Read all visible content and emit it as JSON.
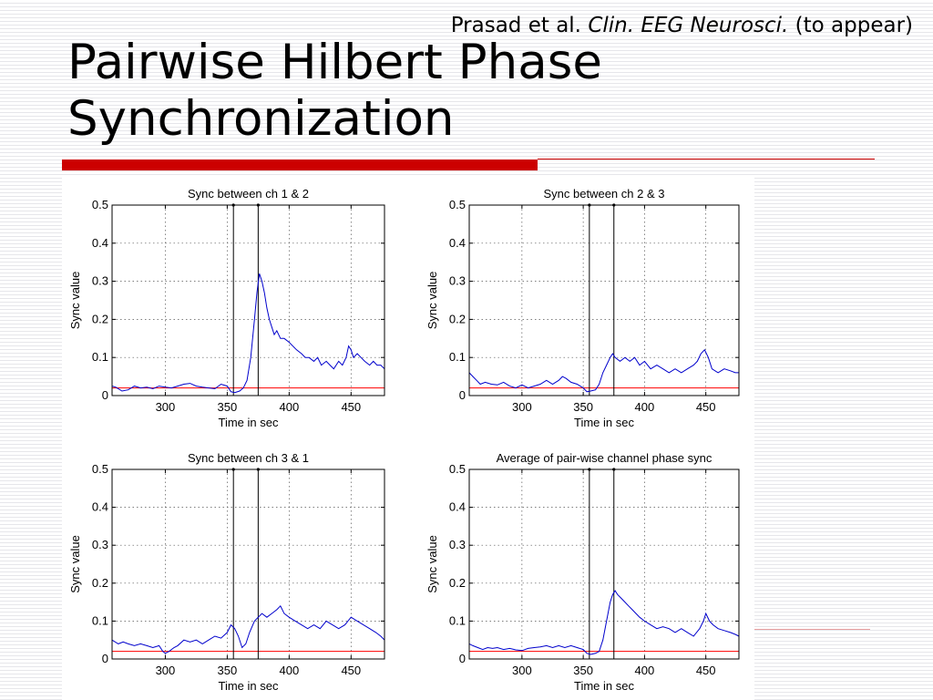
{
  "header": {
    "citation_authors": "Prasad et al.",
    "citation_journal": "Clin. EEG Neurosci.",
    "citation_note": "(to appear)",
    "title": "Pairwise Hilbert Phase Synchronization"
  },
  "colors": {
    "accent_bar": "#cc0000",
    "series_line": "#0000cc",
    "baseline": "#ff0000"
  },
  "chart_data": [
    {
      "type": "line",
      "title": "Sync between ch 1 & 2",
      "xlabel": "Time in sec",
      "ylabel": "Sync value",
      "xlim": [
        257,
        477
      ],
      "ylim": [
        0,
        0.5
      ],
      "xticks": [
        300,
        350,
        400,
        450
      ],
      "yticks": [
        0,
        0.1,
        0.2,
        0.3,
        0.4,
        0.5
      ],
      "grid": true,
      "vlines": [
        355,
        375
      ],
      "baseline": 0.02,
      "series": [
        {
          "x": [
            257,
            260,
            265,
            270,
            275,
            280,
            285,
            290,
            295,
            300,
            305,
            310,
            315,
            320,
            325,
            330,
            335,
            340,
            345,
            350,
            353,
            356,
            360,
            363,
            366,
            369,
            372,
            374,
            376,
            378,
            380,
            382,
            384,
            386,
            388,
            390,
            393,
            396,
            400,
            403,
            406,
            410,
            413,
            416,
            420,
            423,
            426,
            430,
            433,
            436,
            440,
            443,
            446,
            448,
            450,
            452,
            455,
            458,
            461,
            465,
            468,
            471,
            474,
            477
          ],
          "y": [
            0.025,
            0.022,
            0.012,
            0.015,
            0.025,
            0.02,
            0.022,
            0.018,
            0.025,
            0.022,
            0.02,
            0.025,
            0.03,
            0.032,
            0.025,
            0.022,
            0.02,
            0.018,
            0.03,
            0.025,
            0.01,
            0.008,
            0.012,
            0.02,
            0.04,
            0.1,
            0.2,
            0.27,
            0.32,
            0.3,
            0.27,
            0.23,
            0.2,
            0.18,
            0.16,
            0.17,
            0.15,
            0.15,
            0.14,
            0.13,
            0.12,
            0.11,
            0.1,
            0.1,
            0.09,
            0.1,
            0.08,
            0.09,
            0.08,
            0.07,
            0.09,
            0.08,
            0.1,
            0.13,
            0.12,
            0.1,
            0.11,
            0.1,
            0.09,
            0.08,
            0.09,
            0.08,
            0.08,
            0.07
          ]
        }
      ]
    },
    {
      "type": "line",
      "title": "Sync between ch 2 & 3",
      "xlabel": "Time in sec",
      "ylabel": "Sync value",
      "xlim": [
        257,
        477
      ],
      "ylim": [
        0,
        0.5
      ],
      "xticks": [
        300,
        350,
        400,
        450
      ],
      "yticks": [
        0,
        0.1,
        0.2,
        0.3,
        0.4,
        0.5
      ],
      "grid": true,
      "vlines": [
        355,
        375
      ],
      "baseline": 0.02,
      "series": [
        {
          "x": [
            257,
            260,
            263,
            266,
            270,
            275,
            280,
            285,
            290,
            295,
            300,
            305,
            310,
            315,
            320,
            325,
            330,
            333,
            336,
            340,
            345,
            350,
            353,
            356,
            360,
            363,
            366,
            369,
            372,
            374,
            376,
            380,
            384,
            388,
            392,
            396,
            400,
            405,
            410,
            415,
            420,
            425,
            430,
            435,
            440,
            443,
            446,
            449,
            452,
            455,
            460,
            465,
            470,
            474,
            477
          ],
          "y": [
            0.06,
            0.05,
            0.04,
            0.03,
            0.035,
            0.03,
            0.028,
            0.035,
            0.025,
            0.02,
            0.028,
            0.02,
            0.025,
            0.03,
            0.04,
            0.03,
            0.04,
            0.05,
            0.045,
            0.035,
            0.03,
            0.02,
            0.01,
            0.012,
            0.015,
            0.03,
            0.06,
            0.08,
            0.1,
            0.11,
            0.1,
            0.09,
            0.1,
            0.09,
            0.1,
            0.08,
            0.09,
            0.07,
            0.08,
            0.07,
            0.06,
            0.07,
            0.06,
            0.07,
            0.08,
            0.09,
            0.11,
            0.12,
            0.1,
            0.07,
            0.06,
            0.07,
            0.065,
            0.06,
            0.06
          ]
        }
      ]
    },
    {
      "type": "line",
      "title": "Sync between ch 3 & 1",
      "xlabel": "Time in sec",
      "ylabel": "Sync value",
      "xlim": [
        257,
        477
      ],
      "ylim": [
        0,
        0.5
      ],
      "xticks": [
        300,
        350,
        400,
        450
      ],
      "yticks": [
        0,
        0.1,
        0.2,
        0.3,
        0.4,
        0.5
      ],
      "grid": true,
      "vlines": [
        355,
        375
      ],
      "baseline": 0.02,
      "series": [
        {
          "x": [
            257,
            262,
            266,
            270,
            275,
            280,
            285,
            290,
            295,
            298,
            300,
            303,
            307,
            310,
            315,
            320,
            325,
            330,
            335,
            340,
            345,
            350,
            353,
            356,
            359,
            362,
            365,
            368,
            372,
            375,
            378,
            382,
            386,
            390,
            393,
            396,
            400,
            405,
            410,
            415,
            420,
            425,
            430,
            435,
            440,
            445,
            450,
            455,
            460,
            465,
            470,
            474,
            477
          ],
          "y": [
            0.05,
            0.04,
            0.045,
            0.04,
            0.035,
            0.04,
            0.035,
            0.03,
            0.035,
            0.02,
            0.015,
            0.02,
            0.03,
            0.035,
            0.05,
            0.045,
            0.05,
            0.04,
            0.05,
            0.06,
            0.055,
            0.07,
            0.09,
            0.08,
            0.06,
            0.03,
            0.04,
            0.07,
            0.1,
            0.11,
            0.12,
            0.11,
            0.12,
            0.13,
            0.14,
            0.12,
            0.11,
            0.1,
            0.09,
            0.08,
            0.09,
            0.08,
            0.1,
            0.09,
            0.08,
            0.09,
            0.11,
            0.1,
            0.09,
            0.08,
            0.07,
            0.06,
            0.05
          ]
        }
      ]
    },
    {
      "type": "line",
      "title": "Average of pair-wise channel phase sync",
      "xlabel": "Time in sec",
      "ylabel": "Sync value",
      "xlim": [
        257,
        477
      ],
      "ylim": [
        0,
        0.5
      ],
      "xticks": [
        300,
        350,
        400,
        450
      ],
      "yticks": [
        0,
        0.1,
        0.2,
        0.3,
        0.4,
        0.5
      ],
      "grid": true,
      "vlines": [
        355,
        375
      ],
      "baseline": 0.02,
      "series": [
        {
          "x": [
            257,
            260,
            264,
            268,
            272,
            276,
            280,
            285,
            290,
            295,
            300,
            305,
            310,
            315,
            320,
            325,
            330,
            335,
            340,
            345,
            350,
            353,
            356,
            360,
            363,
            366,
            369,
            372,
            374,
            376,
            378,
            381,
            384,
            387,
            390,
            393,
            396,
            400,
            405,
            410,
            415,
            420,
            425,
            430,
            435,
            440,
            445,
            448,
            450,
            453,
            456,
            460,
            465,
            470,
            474,
            477
          ],
          "y": [
            0.04,
            0.035,
            0.03,
            0.025,
            0.03,
            0.028,
            0.03,
            0.025,
            0.028,
            0.024,
            0.022,
            0.028,
            0.03,
            0.032,
            0.035,
            0.03,
            0.035,
            0.03,
            0.035,
            0.03,
            0.025,
            0.015,
            0.012,
            0.015,
            0.02,
            0.05,
            0.1,
            0.15,
            0.17,
            0.18,
            0.17,
            0.16,
            0.15,
            0.14,
            0.13,
            0.12,
            0.11,
            0.1,
            0.09,
            0.08,
            0.085,
            0.08,
            0.07,
            0.08,
            0.07,
            0.06,
            0.08,
            0.1,
            0.12,
            0.1,
            0.09,
            0.08,
            0.075,
            0.07,
            0.065,
            0.06
          ]
        }
      ]
    }
  ]
}
